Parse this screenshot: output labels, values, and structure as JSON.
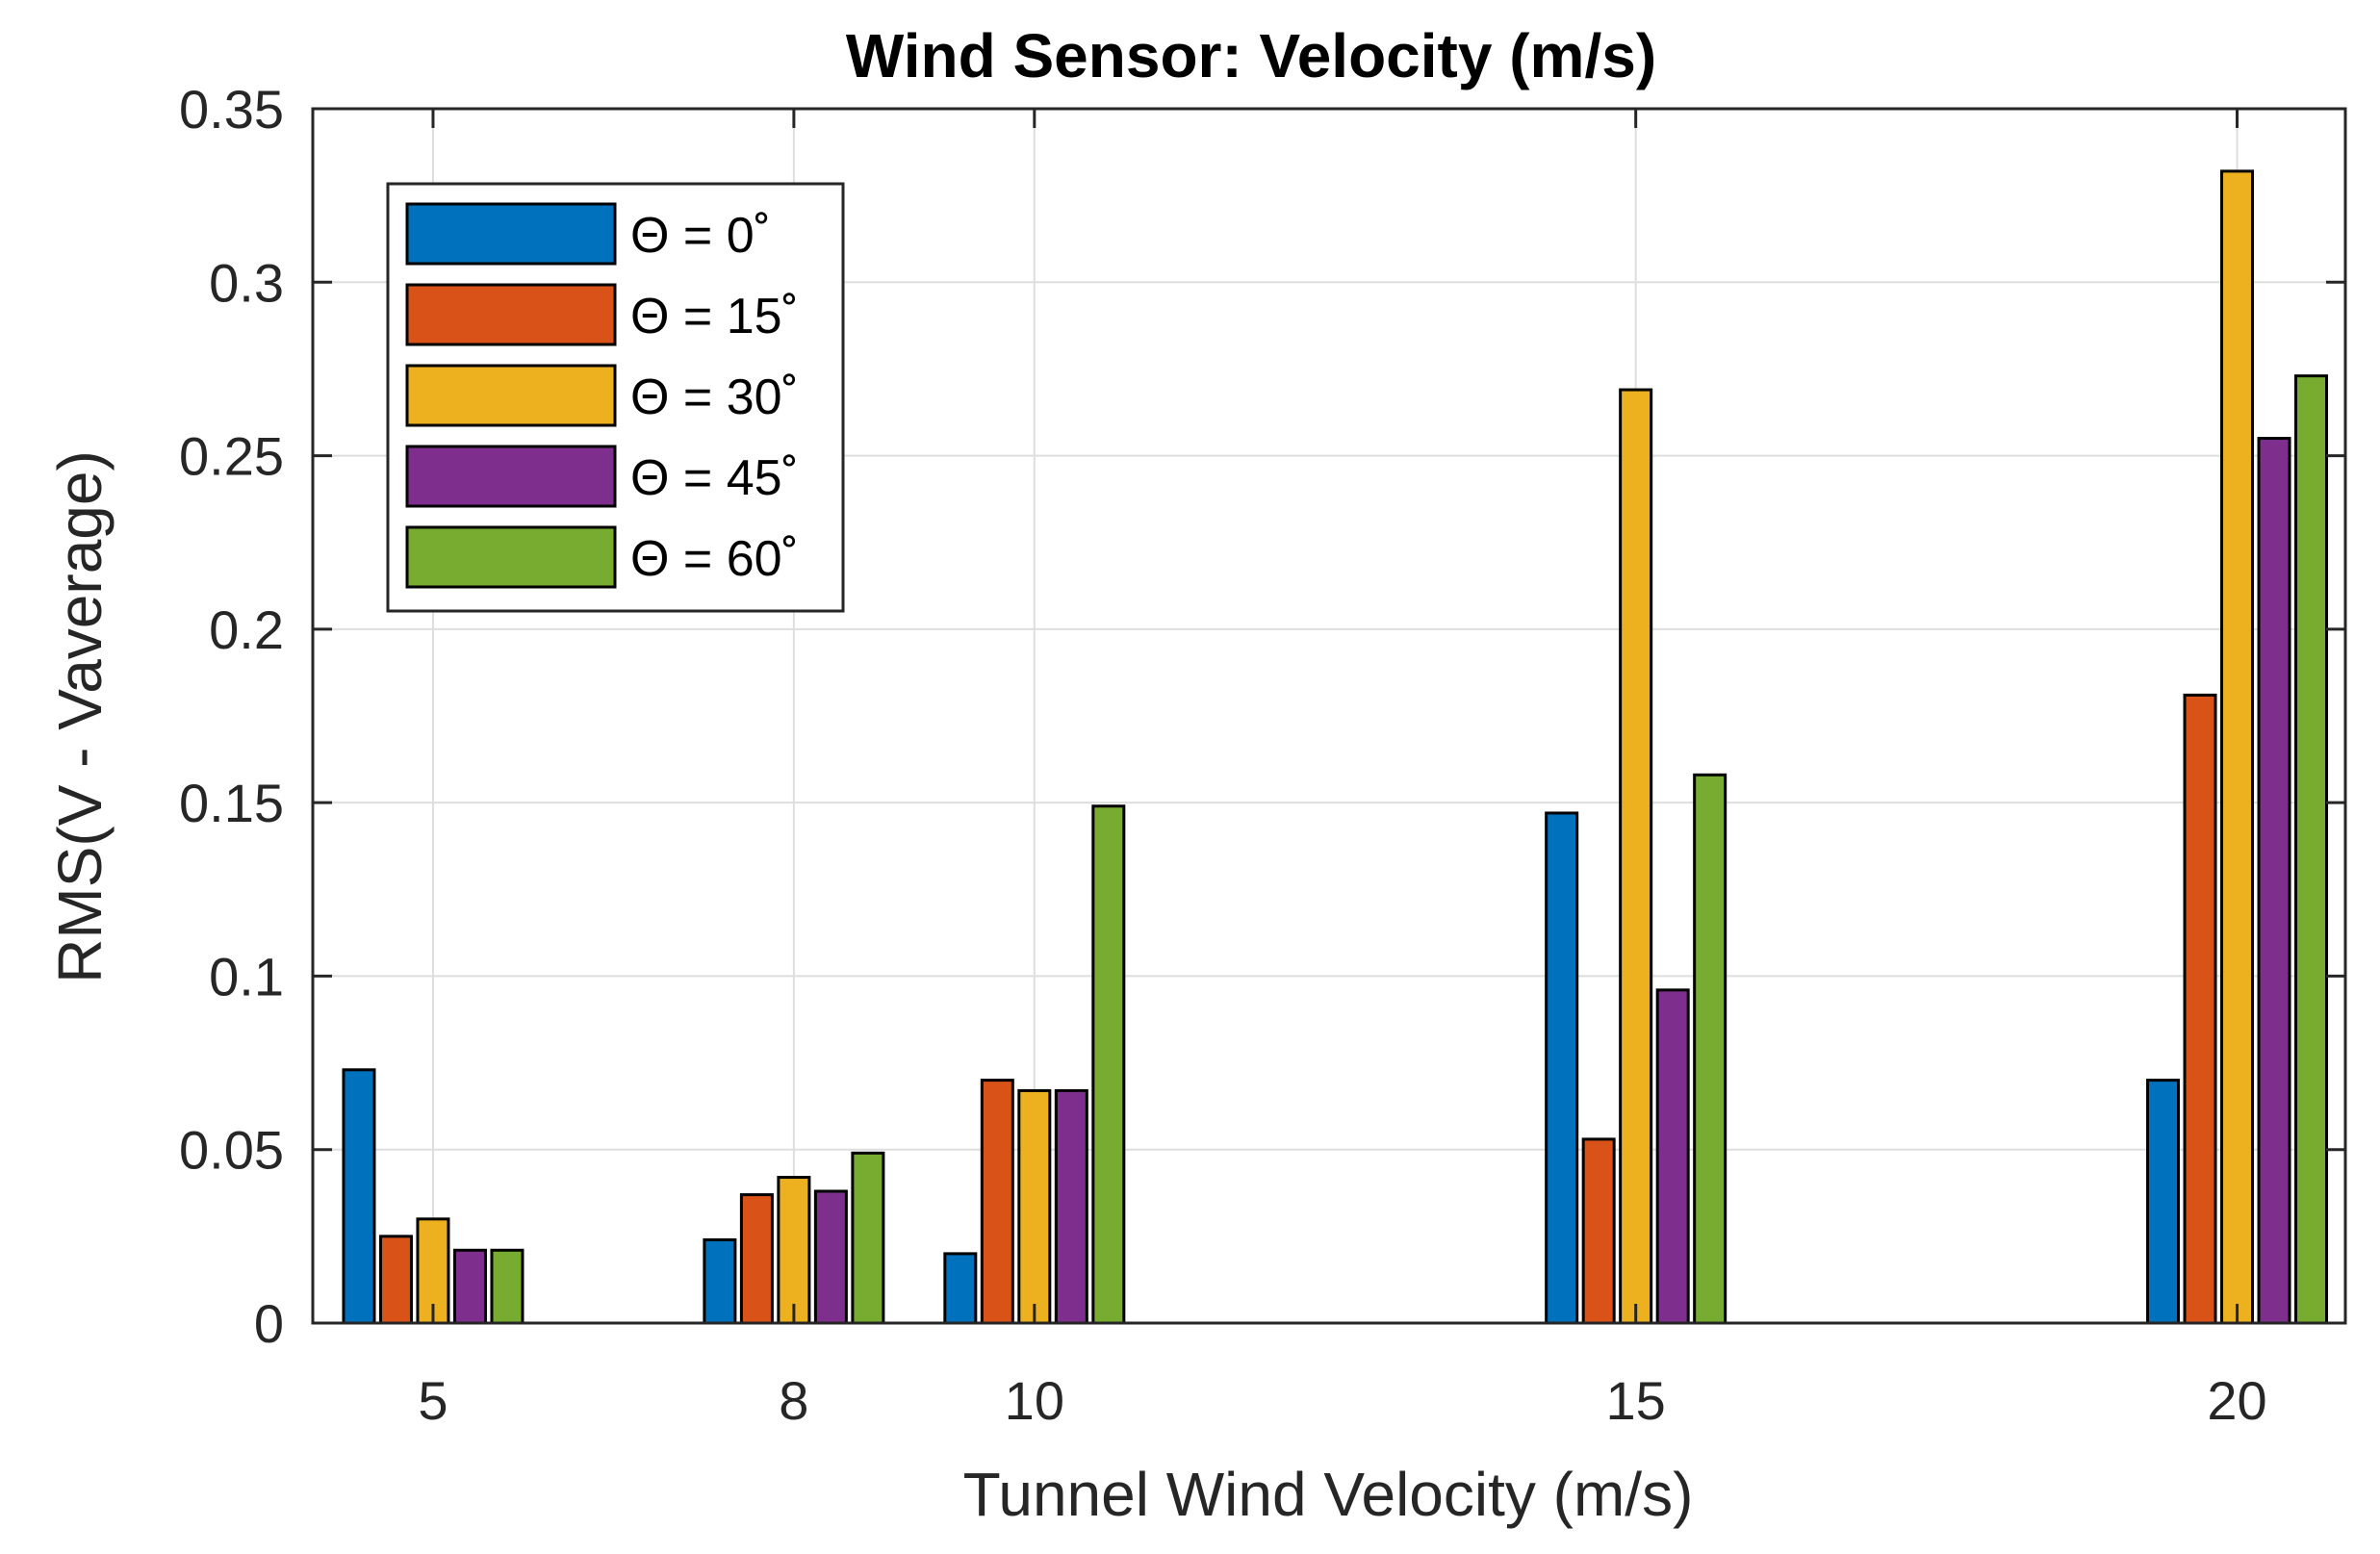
{
  "chart_data": {
    "type": "bar",
    "title": "Wind Sensor: Velocity (m/s)",
    "xlabel": "Tunnel Wind Velocity (m/s)",
    "ylabel": "RMS(V - Vaverage)",
    "x": [
      5,
      8,
      10,
      15,
      20
    ],
    "x_tick_labels": [
      "5",
      "8",
      "10",
      "15",
      "20"
    ],
    "xlim": [
      4.0,
      20.9
    ],
    "ylim": [
      0,
      0.35
    ],
    "y_ticks": [
      0,
      0.05,
      0.1,
      0.15,
      0.2,
      0.25,
      0.3,
      0.35
    ],
    "y_tick_labels": [
      "0",
      "0.05",
      "0.1",
      "0.15",
      "0.2",
      "0.25",
      "0.3",
      "0.35"
    ],
    "grid": true,
    "legend_position": "top-left",
    "series": [
      {
        "name": "Θ = 0˚",
        "color": "#0072BD",
        "values": [
          0.073,
          0.024,
          0.02,
          0.147,
          0.07
        ]
      },
      {
        "name": "Θ = 15˚",
        "color": "#D95319",
        "values": [
          0.025,
          0.037,
          0.07,
          0.053,
          0.181
        ]
      },
      {
        "name": "Θ = 30˚",
        "color": "#EDB120",
        "values": [
          0.03,
          0.042,
          0.067,
          0.269,
          0.332
        ]
      },
      {
        "name": "Θ = 45˚",
        "color": "#7E2F8E",
        "values": [
          0.021,
          0.038,
          0.067,
          0.096,
          0.255
        ]
      },
      {
        "name": "Θ = 60˚",
        "color": "#77AC30",
        "values": [
          0.021,
          0.049,
          0.149,
          0.158,
          0.273
        ]
      }
    ]
  }
}
